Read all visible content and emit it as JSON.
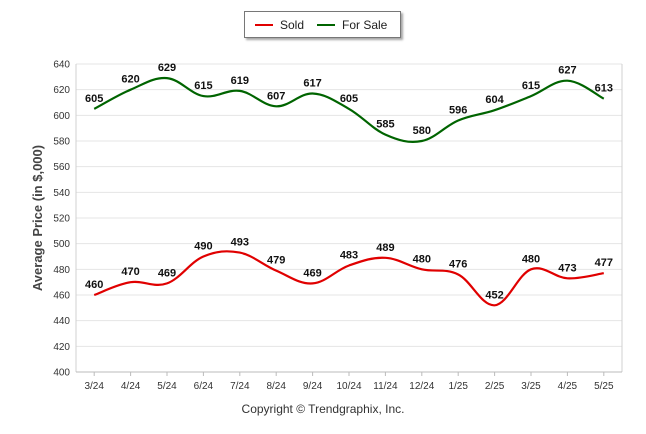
{
  "chart_data": {
    "type": "line",
    "categories": [
      "3/24",
      "4/24",
      "5/24",
      "6/24",
      "7/24",
      "8/24",
      "9/24",
      "10/24",
      "11/24",
      "12/24",
      "1/25",
      "2/25",
      "3/25",
      "4/25",
      "5/25"
    ],
    "series": [
      {
        "name": "Sold",
        "color": "#e00000",
        "values": [
          460,
          470,
          469,
          490,
          493,
          479,
          469,
          483,
          489,
          480,
          476,
          452,
          480,
          473,
          477
        ]
      },
      {
        "name": "For Sale",
        "color": "#006400",
        "values": [
          605,
          620,
          629,
          615,
          619,
          607,
          617,
          605,
          585,
          580,
          596,
          604,
          615,
          627,
          613
        ]
      }
    ],
    "ylabel": "Average Price (in $,000)",
    "xlabel": "",
    "ylim": [
      400,
      640
    ],
    "yticks": [
      400,
      420,
      440,
      460,
      480,
      500,
      520,
      540,
      560,
      580,
      600,
      620,
      640
    ],
    "grid": true,
    "legend": "top-center"
  },
  "footer": {
    "copyright": "Copyright © Trendgraphix, Inc."
  }
}
